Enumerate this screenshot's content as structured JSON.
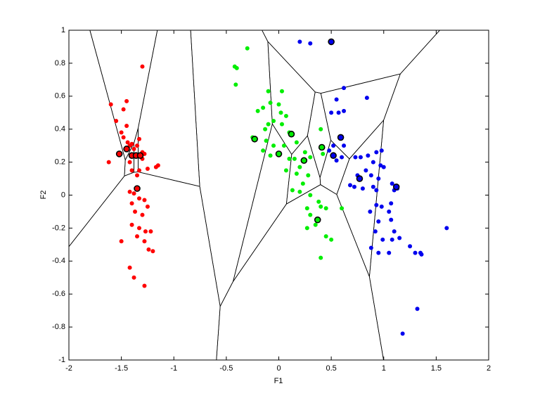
{
  "chart_data": {
    "type": "scatter",
    "xlabel": "F1",
    "ylabel": "F2",
    "xlim": [
      -2,
      2
    ],
    "ylim": [
      -1,
      1
    ],
    "xticks": [
      -2,
      -1.5,
      -1,
      -0.5,
      0,
      0.5,
      1,
      1.5,
      2
    ],
    "yticks": [
      -1,
      -0.8,
      -0.6,
      -0.4,
      -0.2,
      0,
      0.2,
      0.4,
      0.6,
      0.8,
      1
    ],
    "voronoi": true,
    "series": [
      {
        "color": "#ff0000",
        "x": [
          -1.6,
          -1.62,
          -1.55,
          -1.48,
          -1.5,
          -1.45,
          -1.45,
          -1.48,
          -1.44,
          -1.42,
          -1.4,
          -1.38,
          -1.35,
          -1.33,
          -1.3,
          -1.28,
          -1.3,
          -1.42,
          -1.4,
          -1.35,
          -1.33,
          -1.25,
          -1.17,
          -1.15,
          -1.3,
          -1.42,
          -1.38,
          -1.33,
          -1.4,
          -1.28,
          -1.25,
          -1.37,
          -1.3,
          -1.4,
          -1.33,
          -1.27,
          -1.22,
          -1.35,
          -1.28,
          -1.5,
          -1.24,
          -1.2,
          -1.42,
          -1.38,
          -1.28
        ],
        "values": [
          0.55,
          0.2,
          0.45,
          0.52,
          0.38,
          0.57,
          0.42,
          0.35,
          0.32,
          0.3,
          0.31,
          0.28,
          0.3,
          0.34,
          0.26,
          0.25,
          0.22,
          0.2,
          0.15,
          0.12,
          0.15,
          0.16,
          0.17,
          0.18,
          0.78,
          0.02,
          0.01,
          -0.02,
          -0.05,
          -0.03,
          -0.07,
          -0.1,
          -0.12,
          -0.18,
          -0.2,
          -0.22,
          -0.22,
          -0.25,
          -0.28,
          -0.28,
          -0.33,
          -0.34,
          -0.44,
          -0.5,
          -0.55
        ],
        "prototypes": {
          "x": [
            -1.52,
            -1.45,
            -1.4,
            -1.36,
            -1.32,
            -1.35
          ],
          "values": [
            0.25,
            0.28,
            0.24,
            0.24,
            0.24,
            0.04
          ]
        }
      },
      {
        "color": "#00ee00",
        "x": [
          -0.3,
          -0.42,
          -0.4,
          -0.41,
          -0.1,
          0.03,
          -0.08,
          -0.15,
          -0.2,
          0,
          0.02,
          0.07,
          -0.25,
          -0.13,
          -0.1,
          -0.05,
          0.03,
          0.1,
          -0.12,
          -0.05,
          0.05,
          0.17,
          -0.15,
          -0.08,
          0.1,
          0.15,
          0.25,
          0.2,
          0.3,
          0.07,
          0.17,
          0.28,
          0.23,
          0.13,
          0.2,
          0.4,
          0.42,
          0.3,
          0.38,
          0.4,
          0.27,
          0.3,
          0.45,
          0.35,
          0.27,
          0.45,
          0.5,
          0.4,
          0.6
        ],
        "values": [
          0.89,
          0.78,
          0.77,
          0.67,
          0.63,
          0.63,
          0.56,
          0.53,
          0.51,
          0.55,
          0.5,
          0.48,
          0.35,
          0.4,
          0.43,
          0.45,
          0.43,
          0.38,
          0.33,
          0.3,
          0.3,
          0.32,
          0.27,
          0.24,
          0.22,
          0.22,
          0.26,
          0.17,
          0.23,
          0.15,
          0.13,
          0.12,
          0.07,
          0.03,
          0.02,
          0.4,
          0.25,
          0,
          -0.04,
          -0.07,
          -0.08,
          -0.12,
          -0.08,
          -0.18,
          -0.2,
          -0.25,
          -0.27,
          -0.38,
          -0.08
        ],
        "prototypes": {
          "x": [
            -0.23,
            0,
            0.12,
            0.24,
            0.41,
            0.37
          ],
          "values": [
            0.34,
            0.25,
            0.37,
            0.21,
            0.29,
            -0.15
          ]
        }
      },
      {
        "color": "#0000ee",
        "x": [
          0.2,
          0.3,
          0.5,
          0.62,
          0.55,
          0.57,
          0.5,
          0.62,
          0.84,
          0.52,
          0.48,
          0.55,
          0.6,
          0.62,
          0.73,
          0.78,
          0.85,
          0.93,
          0.98,
          0.9,
          0.97,
          1.0,
          0.95,
          0.88,
          0.83,
          0.75,
          0.72,
          0.8,
          0.68,
          0.9,
          0.93,
          1.08,
          1.1,
          1.13,
          0.93,
          0.98,
          0.87,
          1.05,
          1.07,
          0.95,
          0.92,
          1.07,
          1.1,
          1.15,
          1.08,
          0.99,
          0.88,
          0.95,
          1.05,
          1.25,
          1.3,
          1.36,
          1.35,
          1.6,
          1.32,
          1.18
        ],
        "values": [
          0.93,
          0.92,
          0.93,
          0.65,
          0.58,
          0.5,
          0.5,
          0.51,
          0.59,
          0.3,
          0.27,
          0.21,
          0.23,
          0.3,
          0.23,
          0.23,
          0.24,
          0.26,
          0.27,
          0.2,
          0.18,
          0.17,
          0.1,
          0.12,
          0.15,
          0.12,
          0.05,
          0.04,
          0.06,
          0.05,
          0.03,
          0.07,
          0.03,
          0.04,
          -0.06,
          -0.07,
          -0.1,
          -0.1,
          -0.05,
          -0.16,
          -0.22,
          -0.15,
          -0.22,
          -0.26,
          -0.27,
          -0.27,
          -0.32,
          -0.35,
          -0.35,
          -0.31,
          -0.35,
          -0.36,
          -0.35,
          -0.2,
          -0.69,
          -0.84
        ],
        "prototypes": {
          "x": [
            0.5,
            0.59,
            0.52,
            0.77,
            1.12
          ],
          "values": [
            0.93,
            0.35,
            0.24,
            0.1,
            0.05
          ]
        }
      }
    ]
  }
}
